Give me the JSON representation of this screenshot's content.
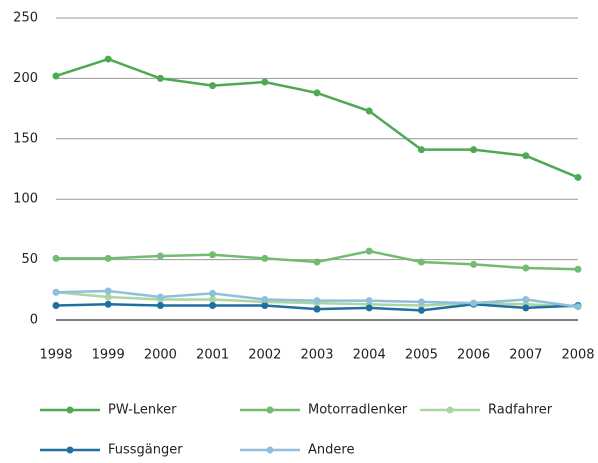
{
  "chart_data": {
    "type": "line",
    "categories": [
      "1998",
      "1999",
      "2000",
      "2001",
      "2002",
      "2003",
      "2004",
      "2005",
      "2006",
      "2007",
      "2008"
    ],
    "series": [
      {
        "name": "PW-Lenker",
        "color": "#4daa50",
        "values": [
          202,
          216,
          200,
          194,
          197,
          188,
          173,
          141,
          141,
          136,
          118
        ]
      },
      {
        "name": "Motorradlenker",
        "color": "#72bb70",
        "values": [
          51,
          51,
          53,
          54,
          51,
          48,
          57,
          48,
          46,
          43,
          42
        ]
      },
      {
        "name": "Radfahrer",
        "color": "#a9d6a1",
        "values": [
          23,
          19,
          17,
          17,
          15,
          14,
          13,
          12,
          14,
          13,
          11
        ]
      },
      {
        "name": "Fussgänger",
        "color": "#1f6fa0",
        "values": [
          12,
          13,
          12,
          12,
          12,
          9,
          10,
          8,
          13,
          10,
          12
        ]
      },
      {
        "name": "Andere",
        "color": "#8fbfdc",
        "values": [
          23,
          24,
          19,
          22,
          17,
          16,
          16,
          15,
          14,
          17,
          11
        ]
      }
    ],
    "ylim": [
      0,
      250
    ],
    "yticks": [
      0,
      50,
      100,
      150,
      200,
      250
    ],
    "grid": true,
    "legend": "bottom"
  }
}
